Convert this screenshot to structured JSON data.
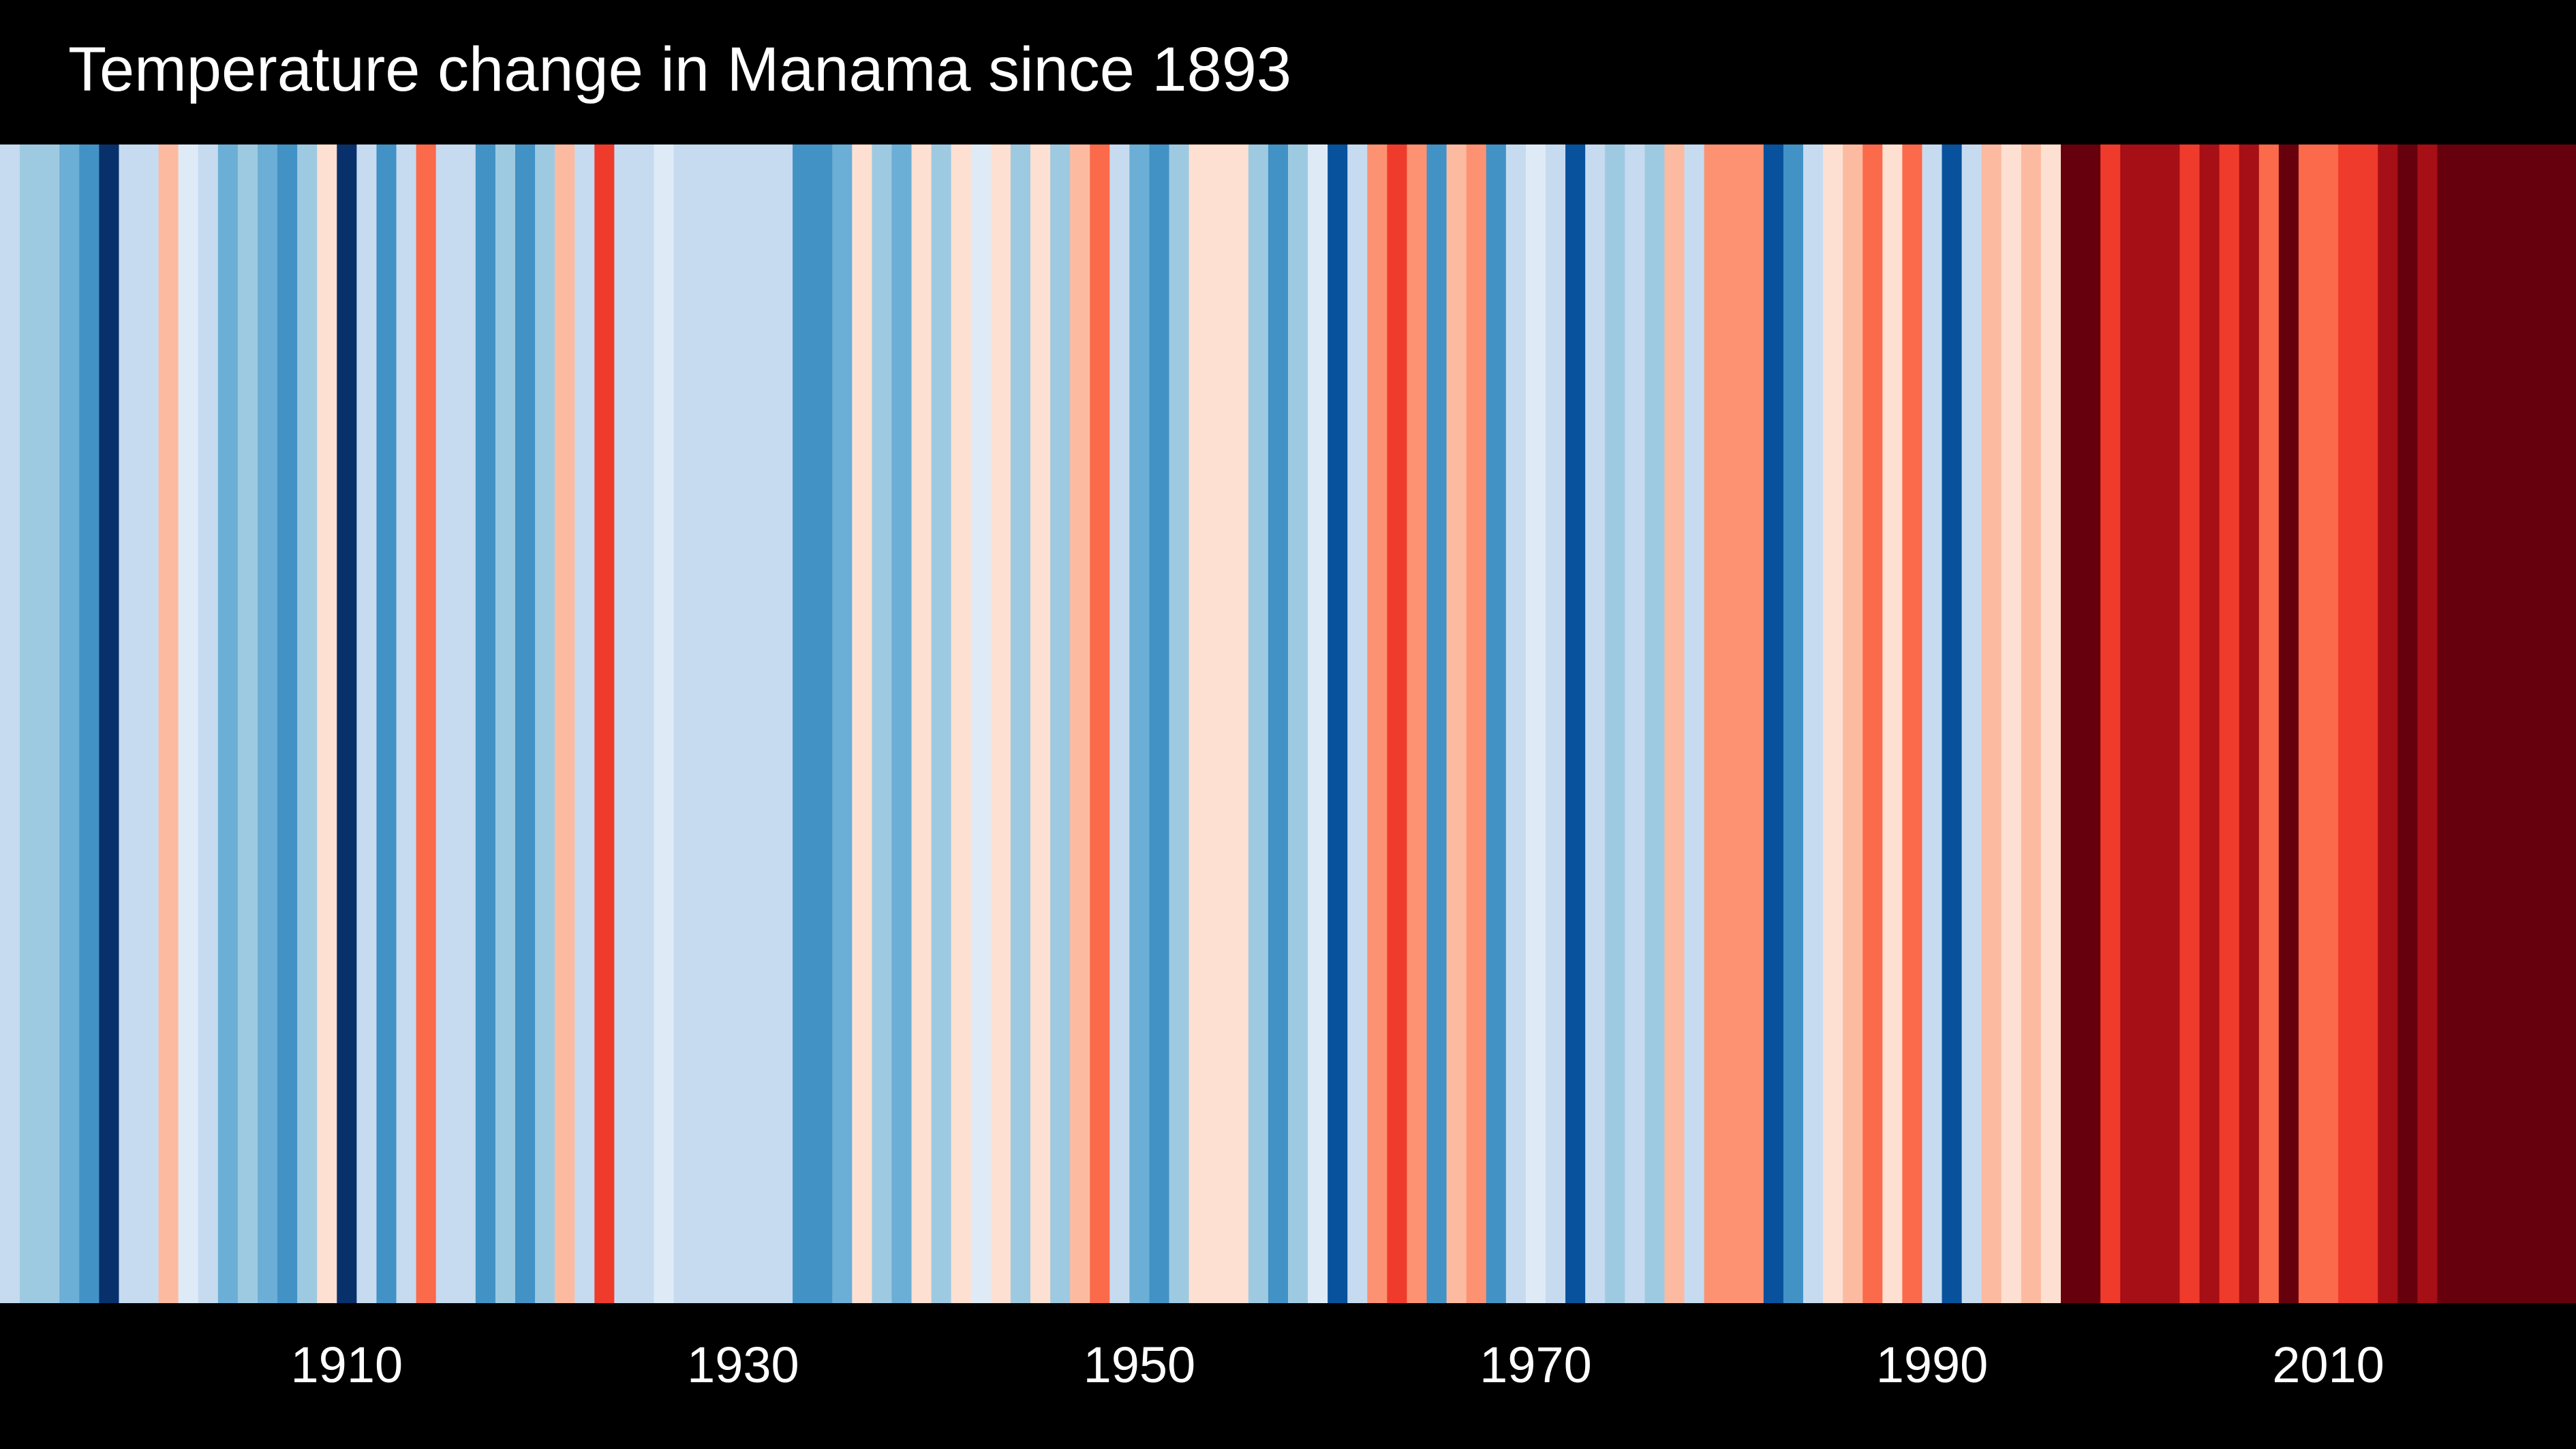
{
  "chart_data": {
    "type": "heatmap",
    "title": "Temperature change in Manama since 1893",
    "background": "#000000",
    "x_start_year": 1893,
    "x_end_year": 2022,
    "x_tick_labels": [
      "1910",
      "1930",
      "1950",
      "1970",
      "1990",
      "2010"
    ],
    "x_tick_values": [
      1910,
      1930,
      1950,
      1970,
      1990,
      2010
    ],
    "years": [
      1893,
      1894,
      1895,
      1896,
      1897,
      1898,
      1899,
      1900,
      1901,
      1902,
      1903,
      1904,
      1905,
      1906,
      1907,
      1908,
      1909,
      1910,
      1911,
      1912,
      1913,
      1914,
      1915,
      1916,
      1917,
      1918,
      1919,
      1920,
      1921,
      1922,
      1923,
      1924,
      1925,
      1926,
      1927,
      1928,
      1929,
      1930,
      1931,
      1932,
      1933,
      1934,
      1935,
      1936,
      1937,
      1938,
      1939,
      1940,
      1941,
      1942,
      1943,
      1944,
      1945,
      1946,
      1947,
      1948,
      1949,
      1950,
      1951,
      1952,
      1953,
      1954,
      1955,
      1956,
      1957,
      1958,
      1959,
      1960,
      1961,
      1962,
      1963,
      1964,
      1965,
      1966,
      1967,
      1968,
      1969,
      1970,
      1971,
      1972,
      1973,
      1974,
      1975,
      1976,
      1977,
      1978,
      1979,
      1980,
      1981,
      1982,
      1983,
      1984,
      1985,
      1986,
      1987,
      1988,
      1989,
      1990,
      1991,
      1992,
      1993,
      1994,
      1995,
      1996,
      1997,
      1998,
      1999,
      2000,
      2001,
      2002,
      2003,
      2004,
      2005,
      2006,
      2007,
      2008,
      2009,
      2010,
      2011,
      2012,
      2013,
      2014,
      2015,
      2016,
      2017,
      2018,
      2019,
      2020,
      2021,
      2022
    ],
    "stripe_colors": [
      "#c6dbef",
      "#9ecae1",
      "#9ecae1",
      "#6baed6",
      "#4292c6",
      "#08306b",
      "#c6dbef",
      "#c6dbef",
      "#fcbba1",
      "#deebf7",
      "#c6dbef",
      "#6baed6",
      "#9ecae1",
      "#6baed6",
      "#4292c6",
      "#9ecae1",
      "#fee0d2",
      "#08306b",
      "#c6dbef",
      "#4292c6",
      "#c6dbef",
      "#fb6a4a",
      "#c6dbef",
      "#c6dbef",
      "#4292c6",
      "#9ecae1",
      "#4292c6",
      "#9ecae1",
      "#fcbba1",
      "#c6dbef",
      "#ef3b2c",
      "#c6dbef",
      "#c6dbef",
      "#deebf7",
      "#c6dbef",
      "#c6dbef",
      "#c6dbef",
      "#c6dbef",
      "#c6dbef",
      "#c6dbef",
      "#4292c6",
      "#4292c6",
      "#6baed6",
      "#fee0d2",
      "#9ecae1",
      "#6baed6",
      "#fee0d2",
      "#9ecae1",
      "#fee0d2",
      "#deebf7",
      "#fee0d2",
      "#9ecae1",
      "#fee0d2",
      "#9ecae1",
      "#fcbba1",
      "#fb6a4a",
      "#c6dbef",
      "#6baed6",
      "#4292c6",
      "#9ecae1",
      "#fee0d2",
      "#fee0d2",
      "#fee0d2",
      "#9ecae1",
      "#4292c6",
      "#9ecae1",
      "#deebf7",
      "#08519c",
      "#c6dbef",
      "#fc9272",
      "#ef3b2c",
      "#fc9272",
      "#4292c6",
      "#fcbba1",
      "#fc9272",
      "#4292c6",
      "#c6dbef",
      "#deebf7",
      "#c6dbef",
      "#08519c",
      "#c6dbef",
      "#9ecae1",
      "#c6dbef",
      "#9ecae1",
      "#fcbba1",
      "#c6dbef",
      "#fc9272",
      "#fc9272",
      "#fc9272",
      "#08519c",
      "#4292c6",
      "#c6dbef",
      "#fee0d2",
      "#fcbba1",
      "#fb6a4a",
      "#fee0d2",
      "#fb6a4a",
      "#c6dbef",
      "#08519c",
      "#c6dbef",
      "#fcbba1",
      "#fee0d2",
      "#fcbba1",
      "#fee0d2",
      "#67000d",
      "#67000d",
      "#ef3b2c",
      "#a50f15",
      "#a50f15",
      "#a50f15",
      "#ef3b2c",
      "#a50f15",
      "#ef3b2c",
      "#a50f15",
      "#fb6a4a",
      "#67000d",
      "#fb6a4a",
      "#fb6a4a",
      "#ef3b2c",
      "#ef3b2c",
      "#a50f15",
      "#67000d",
      "#a50f15",
      "#67000d",
      "#67000d",
      "#67000d",
      "#67000d",
      "#67000d",
      "#67000d",
      "#67000d"
    ]
  }
}
